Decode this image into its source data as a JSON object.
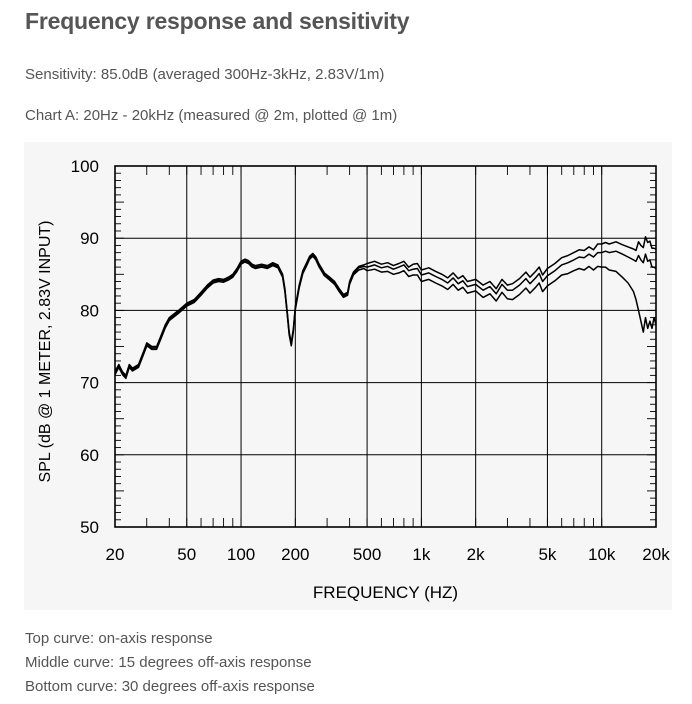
{
  "page": {
    "title": "Frequency response and sensitivity",
    "sensitivity": "Sensitivity: 85.0dB (averaged 300Hz-3kHz, 2.83V/1m)",
    "chart_caption": "Chart A: 20Hz - 20kHz (measured @ 2m, plotted @ 1m)",
    "notes": [
      "Top curve: on-axis response",
      "Middle curve: 15 degrees off-axis response",
      "Bottom curve: 30 degrees off-axis response"
    ]
  },
  "chart_data": {
    "type": "line",
    "xlabel": "FREQUENCY  (HZ)",
    "ylabel": "SPL (dB @ 1 METER, 2.83V INPUT)",
    "xscale": "log",
    "xlim": [
      20,
      20000
    ],
    "ylim": [
      50,
      100
    ],
    "x_ticks": [
      20,
      50,
      100,
      200,
      500,
      1000,
      2000,
      5000,
      10000,
      20000
    ],
    "x_tick_labels": [
      "20",
      "50",
      "100",
      "200",
      "500",
      "1k",
      "2k",
      "5k",
      "10k",
      "20k"
    ],
    "y_ticks": [
      50,
      60,
      70,
      80,
      90,
      100
    ],
    "y_tick_labels": [
      "50",
      "60",
      "70",
      "80",
      "90",
      "100"
    ],
    "grid": true,
    "line_color": "#000000",
    "series": [
      {
        "x": [
          20,
          21,
          22,
          23,
          24,
          25,
          27,
          29,
          30,
          32,
          34,
          36,
          38,
          40,
          45,
          50,
          55,
          60,
          65,
          70,
          75,
          80,
          85,
          90,
          95,
          100,
          105,
          110,
          115,
          120,
          130,
          140,
          150,
          160,
          170,
          175,
          180,
          185,
          190,
          195,
          200,
          210,
          220,
          230,
          240,
          250,
          260,
          270,
          290,
          310,
          330,
          350,
          370,
          390,
          400,
          420,
          450,
          480,
          500,
          550,
          600,
          650,
          700,
          750,
          800,
          850,
          900,
          950,
          1000,
          1100,
          1200,
          1300,
          1400,
          1500,
          1600,
          1700,
          1800,
          2000,
          2200,
          2400,
          2600,
          2800,
          3000,
          3200,
          3500,
          3800,
          4000,
          4300,
          4500,
          4700,
          5000,
          5500,
          6000,
          6500,
          7000,
          7500,
          8000,
          8500,
          9000,
          9500,
          10000,
          10500,
          11000,
          12000,
          13000,
          14000,
          15000,
          15500,
          16000,
          16500,
          17000,
          17500,
          18000,
          18500,
          19000,
          19500,
          20000
        ],
        "y": [
          71.5,
          72.5,
          71.5,
          71,
          72.5,
          72,
          72.5,
          74.5,
          75.5,
          75,
          75,
          76.5,
          78,
          79,
          80,
          81,
          81.5,
          82.5,
          83.5,
          84.2,
          84.4,
          84.3,
          84.6,
          85,
          85.8,
          86.8,
          87.1,
          86.9,
          86.4,
          86.2,
          86.4,
          86.2,
          86.6,
          86.3,
          85,
          83,
          80,
          77,
          75.5,
          77.5,
          80.5,
          83.5,
          85.5,
          86.5,
          87.5,
          87.9,
          87.4,
          86.5,
          85.2,
          84.6,
          84,
          83,
          82.2,
          82.5,
          84,
          85.3,
          86.1,
          86.3,
          86.5,
          86.8,
          86.4,
          86.6,
          86.2,
          86.5,
          86.8,
          86.0,
          86.4,
          86.5,
          85.6,
          85.9,
          85.4,
          85.0,
          84.5,
          85.2,
          84.4,
          84.8,
          84.0,
          84.3,
          83.5,
          84.0,
          83.0,
          84.3,
          83.5,
          83.7,
          84.4,
          85.3,
          84.6,
          85.4,
          86.0,
          84.9,
          85.8,
          86.5,
          87.3,
          87.6,
          88.0,
          88.4,
          88.3,
          88.8,
          88.4,
          89.2,
          89.2,
          89.4,
          89.2,
          89.5,
          89.1,
          88.8,
          88.5,
          88.3,
          89.5,
          89.0,
          88.7,
          90.2,
          89.4,
          89.6,
          88.6,
          88.6,
          88.5
        ]
      },
      {
        "x": [
          20,
          21,
          22,
          23,
          24,
          25,
          27,
          29,
          30,
          32,
          34,
          36,
          38,
          40,
          45,
          50,
          55,
          60,
          65,
          70,
          75,
          80,
          85,
          90,
          95,
          100,
          105,
          110,
          115,
          120,
          130,
          140,
          150,
          160,
          170,
          175,
          180,
          185,
          190,
          195,
          200,
          210,
          220,
          230,
          240,
          250,
          260,
          270,
          290,
          310,
          330,
          350,
          370,
          390,
          400,
          420,
          450,
          480,
          500,
          550,
          600,
          650,
          700,
          750,
          800,
          850,
          900,
          950,
          1000,
          1100,
          1200,
          1300,
          1400,
          1500,
          1600,
          1700,
          1800,
          2000,
          2200,
          2400,
          2600,
          2800,
          3000,
          3200,
          3500,
          3800,
          4000,
          4300,
          4500,
          4700,
          5000,
          5500,
          6000,
          6500,
          7000,
          7500,
          8000,
          8500,
          9000,
          9500,
          10000,
          10500,
          11000,
          12000,
          13000,
          14000,
          15000,
          15500,
          16000,
          16500,
          17000,
          17500,
          18000,
          18500,
          19000,
          19500,
          20000
        ],
        "y": [
          71.3,
          72.3,
          71.3,
          70.8,
          72.3,
          71.8,
          72.3,
          74.3,
          75.3,
          74.8,
          74.8,
          76.3,
          77.8,
          78.8,
          79.8,
          80.8,
          81.3,
          82.3,
          83.3,
          84.0,
          84.2,
          84.1,
          84.4,
          84.8,
          85.6,
          86.6,
          86.9,
          86.7,
          86.2,
          86.0,
          86.2,
          86.0,
          86.4,
          86.1,
          84.8,
          82.8,
          79.8,
          76.8,
          75.3,
          77.3,
          80.3,
          83.3,
          85.3,
          86.3,
          87.3,
          87.7,
          87.2,
          86.3,
          85.0,
          84.4,
          83.8,
          82.8,
          82.0,
          82.3,
          83.8,
          85.1,
          85.9,
          86.1,
          86.0,
          86.3,
          85.9,
          86.1,
          85.7,
          86.0,
          86.3,
          85.5,
          85.7,
          85.8,
          84.9,
          85.2,
          84.7,
          84.3,
          83.8,
          84.5,
          83.7,
          84.1,
          83.3,
          83.6,
          82.8,
          83.3,
          82.3,
          83.6,
          82.8,
          82.8,
          83.5,
          84.4,
          83.7,
          84.5,
          85.1,
          84.0,
          84.8,
          85.5,
          86.3,
          86.6,
          87.0,
          87.4,
          87.3,
          87.8,
          87.4,
          88.0,
          88.0,
          88.2,
          88.0,
          88.2,
          87.8,
          87.4,
          87.0,
          86.8,
          87.6,
          87.0,
          86.6,
          87.8,
          86.8,
          87.0,
          86.0,
          86.0,
          85.8
        ]
      },
      {
        "x": [
          20,
          21,
          22,
          23,
          24,
          25,
          27,
          29,
          30,
          32,
          34,
          36,
          38,
          40,
          45,
          50,
          55,
          60,
          65,
          70,
          75,
          80,
          85,
          90,
          95,
          100,
          105,
          110,
          115,
          120,
          130,
          140,
          150,
          160,
          170,
          175,
          180,
          185,
          190,
          195,
          200,
          210,
          220,
          230,
          240,
          250,
          260,
          270,
          290,
          310,
          330,
          350,
          370,
          390,
          400,
          420,
          450,
          480,
          500,
          550,
          600,
          650,
          700,
          750,
          800,
          850,
          900,
          950,
          1000,
          1100,
          1200,
          1300,
          1400,
          1500,
          1600,
          1700,
          1800,
          2000,
          2200,
          2400,
          2600,
          2800,
          3000,
          3200,
          3500,
          3800,
          4000,
          4300,
          4500,
          4700,
          5000,
          5500,
          6000,
          6500,
          7000,
          7500,
          8000,
          8500,
          9000,
          9500,
          10000,
          10500,
          11000,
          12000,
          13000,
          14000,
          15000,
          15500,
          16000,
          16500,
          17000,
          17500,
          18000,
          18500,
          19000,
          19500,
          20000
        ],
        "y": [
          71.1,
          72.1,
          71.1,
          70.6,
          72.1,
          71.6,
          72.1,
          74.1,
          75.1,
          74.6,
          74.6,
          76.1,
          77.6,
          78.6,
          79.6,
          80.6,
          81.1,
          82.1,
          83.1,
          83.8,
          84.0,
          83.9,
          84.2,
          84.6,
          85.4,
          86.4,
          86.7,
          86.5,
          86.0,
          85.8,
          86.0,
          85.8,
          86.2,
          85.9,
          84.6,
          82.6,
          79.6,
          76.6,
          75.1,
          77.1,
          80.1,
          83.1,
          85.1,
          86.1,
          87.1,
          87.5,
          87.0,
          86.1,
          84.8,
          84.2,
          83.6,
          82.6,
          81.8,
          82.1,
          83.6,
          84.9,
          85.6,
          85.8,
          85.5,
          85.7,
          85.3,
          85.4,
          85.0,
          85.2,
          85.5,
          84.7,
          84.9,
          84.9,
          84.0,
          84.3,
          83.8,
          83.4,
          82.9,
          83.6,
          82.8,
          83.2,
          82.4,
          82.7,
          81.8,
          82.3,
          81.3,
          82.5,
          81.6,
          81.5,
          82.2,
          83.1,
          82.4,
          83.2,
          83.8,
          82.6,
          83.4,
          84.1,
          84.9,
          85.1,
          85.5,
          85.8,
          85.6,
          86.1,
          85.6,
          86.1,
          86.0,
          86.0,
          85.6,
          85.4,
          84.6,
          83.8,
          82.6,
          81.5,
          80.0,
          78.5,
          77.0,
          79.0,
          77.5,
          78.5,
          77.5,
          79.0,
          78.0
        ]
      }
    ]
  }
}
